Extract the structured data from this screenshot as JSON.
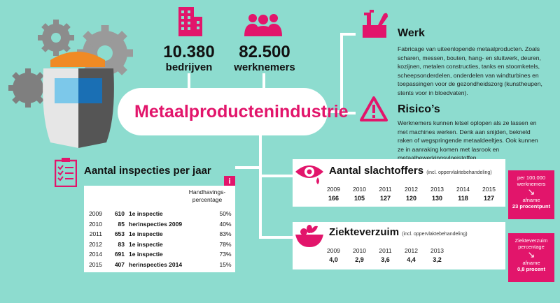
{
  "stats": {
    "bedrijven_num": "10.380",
    "bedrijven_label": "bedrijven",
    "werknemers_num": "82.500",
    "werknemers_label": "werknemers"
  },
  "title": "Metaalproductenindustrie",
  "werk": {
    "title": "Werk",
    "text": "Fabricage van uiteenlopende metaalproducten. Zoals scharen, messen, bouten, hang- en sluitwerk, deuren, kozijnen, metalen constructies, tanks en stoomketels, scheepsonderdelen, onderdelen van windturbines en toepassingen voor de gezondheidszorg (kunstheupen, stents voor in bloedvaten)."
  },
  "risicos": {
    "title": "Risico’s",
    "text": "Werknemers kunnen letsel oplopen als ze lassen en met machines werken. Denk aan snijden, bekneld raken of wegspringende metaaldeeltjes. Ook kunnen ze in aanraking komen met lasrook en metaalbewerkingsvloeistoffen."
  },
  "inspecties": {
    "title": "Aantal inspecties per jaar",
    "header_line1": "Handhavings-",
    "header_line2": "percentage",
    "rows": [
      {
        "year": "2009",
        "num": "610",
        "desc": "1e inspectie",
        "pct": "50%"
      },
      {
        "year": "2010",
        "num": "85",
        "desc": "herinspecties 2009",
        "pct": "40%"
      },
      {
        "year": "2011",
        "num": "653",
        "desc": "1e inspectie",
        "pct": "83%"
      },
      {
        "year": "2012",
        "num": "83",
        "desc": "1e inspectie",
        "pct": "78%"
      },
      {
        "year": "2014",
        "num": "691",
        "desc": "1e inspectie",
        "pct": "73%"
      },
      {
        "year": "2015",
        "num": "407",
        "desc": "herinspecties 2014",
        "pct": "15%"
      }
    ],
    "info_icon_text": "i"
  },
  "slachtoffers": {
    "title": "Aantal slachtoffers",
    "note": "(incl. oppervlaktebehandeling)",
    "years": [
      "2009",
      "2010",
      "2011",
      "2012",
      "2013",
      "2014",
      "2015"
    ],
    "values": [
      "166",
      "105",
      "127",
      "120",
      "130",
      "118",
      "127"
    ],
    "box_line1": "per 100.000",
    "box_line2": "werknemers",
    "box_line3": "afname",
    "box_line4": "23 procentpunt"
  },
  "verzuim": {
    "title": "Ziekteverzuim",
    "note": "(incl. oppervlaktebehandeling)",
    "years": [
      "2009",
      "2010",
      "2011",
      "2012",
      "2013"
    ],
    "values": [
      "4,0",
      "2,9",
      "3,6",
      "4,4",
      "3,2"
    ],
    "box_line1": "Ziekteverzuim",
    "box_line2": "percentage",
    "box_line3": "afname",
    "box_line4": "0,8 procent"
  },
  "colors": {
    "background": "#8ddccf",
    "accent": "#e2156b"
  }
}
